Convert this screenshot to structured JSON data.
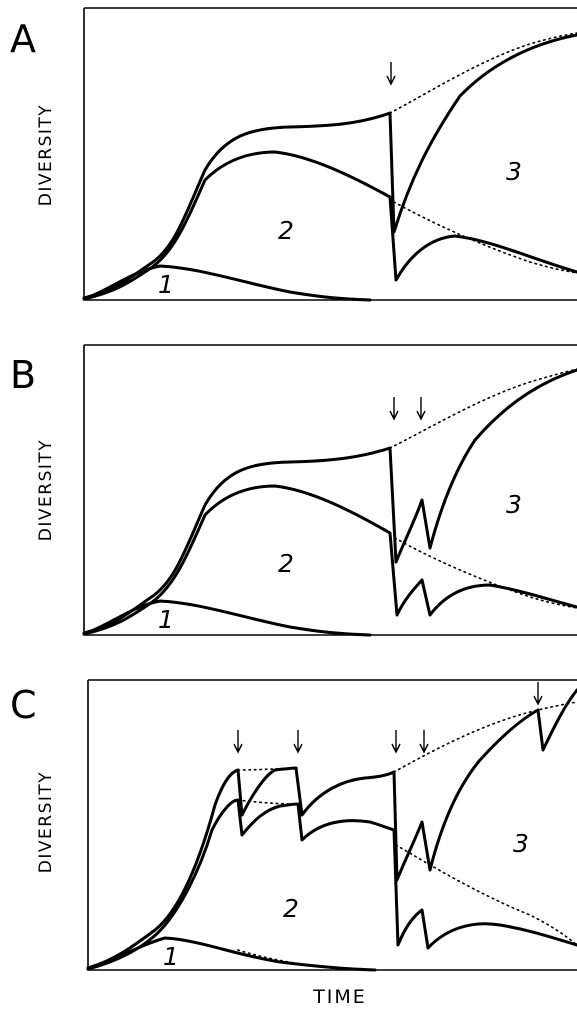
{
  "panels": [
    {
      "label": "A",
      "ylabel": "DIVERSITY",
      "regions": [
        "1",
        "2",
        "3"
      ],
      "arrows": 1
    },
    {
      "label": "B",
      "ylabel": "DIVERSITY",
      "regions": [
        "1",
        "2",
        "3"
      ],
      "arrows": 2
    },
    {
      "label": "C",
      "ylabel": "DIVERSITY",
      "regions": [
        "1",
        "2",
        "3"
      ],
      "arrows": 5
    }
  ],
  "xlabel": "TIME",
  "colors": {
    "ink": "#000000",
    "background": "#ffffff"
  }
}
